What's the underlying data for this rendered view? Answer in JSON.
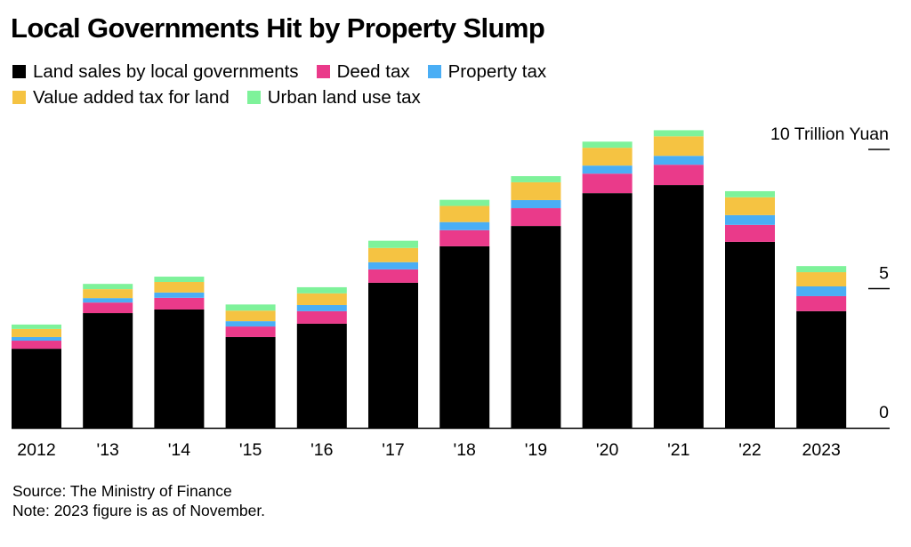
{
  "chart_data": {
    "type": "bar",
    "stacked": true,
    "title": "Local Governments Hit by Property Slump",
    "xlabel": "",
    "ylabel": "",
    "unit_label": "10 Trillion Yuan",
    "ylim": [
      0,
      10
    ],
    "yticks": [
      {
        "value": 10,
        "label": "10 Trillion Yuan"
      },
      {
        "value": 5,
        "label": "5"
      },
      {
        "value": 0,
        "label": "0"
      }
    ],
    "grid": false,
    "legend_position": "top-left",
    "categories": [
      "2012",
      "'13",
      "'14",
      "'15",
      "'16",
      "'17",
      "'18",
      "'19",
      "'20",
      "'21",
      "'22",
      "2023"
    ],
    "series": [
      {
        "name": "Land sales by local governments",
        "color": "#000000",
        "values": [
          2.84,
          4.12,
          4.25,
          3.26,
          3.74,
          5.21,
          6.52,
          7.25,
          8.43,
          8.72,
          6.68,
          4.19
        ]
      },
      {
        "name": "Deed tax",
        "color": "#ea3a8a",
        "values": [
          0.29,
          0.38,
          0.42,
          0.38,
          0.45,
          0.48,
          0.58,
          0.64,
          0.7,
          0.73,
          0.61,
          0.54
        ]
      },
      {
        "name": "Property tax",
        "color": "#4aaef5",
        "values": [
          0.13,
          0.16,
          0.19,
          0.19,
          0.22,
          0.26,
          0.29,
          0.29,
          0.29,
          0.32,
          0.35,
          0.35
        ]
      },
      {
        "name": "Value added tax for land",
        "color": "#f5c342",
        "values": [
          0.29,
          0.32,
          0.38,
          0.38,
          0.42,
          0.51,
          0.58,
          0.64,
          0.64,
          0.7,
          0.64,
          0.51
        ]
      },
      {
        "name": "Urban land use tax",
        "color": "#7ef29a",
        "values": [
          0.16,
          0.19,
          0.19,
          0.22,
          0.22,
          0.26,
          0.22,
          0.22,
          0.22,
          0.22,
          0.22,
          0.22
        ]
      }
    ]
  },
  "legend": {
    "row1": [
      0,
      1,
      2
    ],
    "row2": [
      3,
      4
    ]
  },
  "footer": {
    "source": "Source: The Ministry of Finance",
    "note": "Note: 2023 figure is as of November."
  }
}
